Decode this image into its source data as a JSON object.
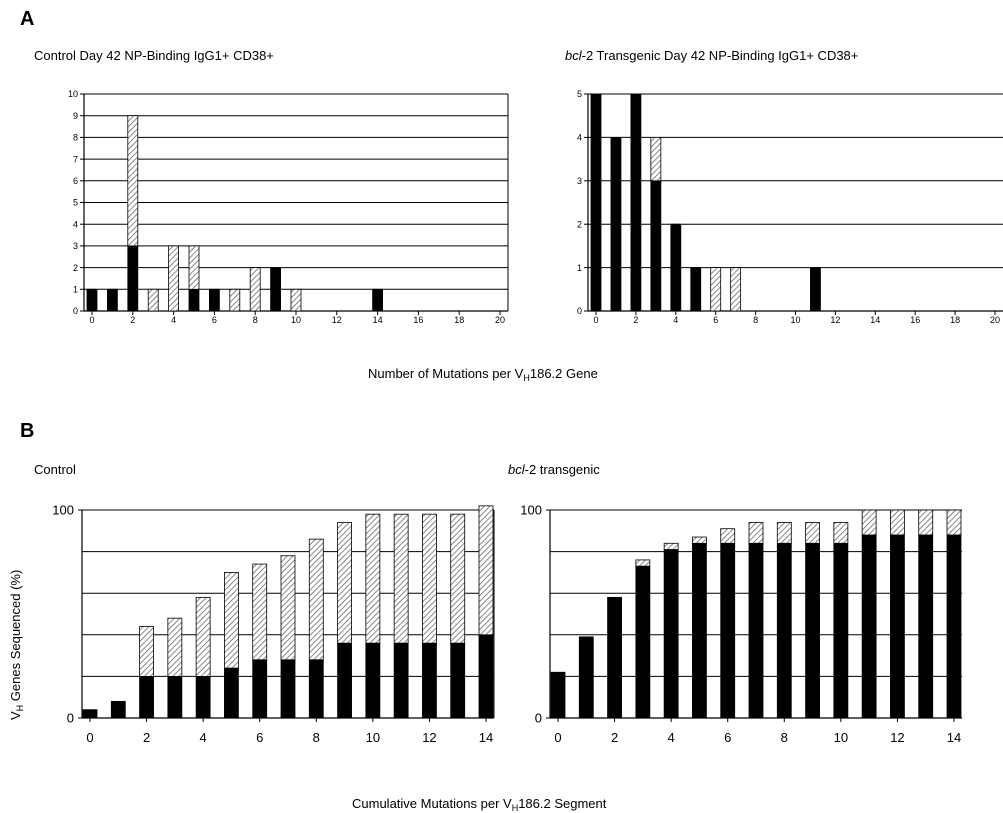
{
  "panel_labels": {
    "a": "A",
    "b": "B"
  },
  "titles": {
    "a_left": "Control Day 42 NP-Binding IgG1+ CD38+",
    "a_right_italic": "bcl",
    "a_right_rest": "-2 Transgenic Day 42 NP-Binding IgG1+ CD38+",
    "b_left": "Control",
    "b_right_italic": "bcl",
    "b_right_rest": "-2 transgenic"
  },
  "captions": {
    "a_x_pre": "Number of Mutations per V",
    "a_x_sub": "H",
    "a_x_post": "186.2 Gene",
    "b_x_pre": "Cumulative Mutations per V",
    "b_x_sub": "H",
    "b_x_post": "186.2 Segment",
    "b_y_pre": "V",
    "b_y_sub": "H",
    "b_y_post": " Genes Sequenced (%)"
  },
  "colors": {
    "solid": "#000000",
    "hatch": "#888888",
    "grid": "#000000"
  },
  "chart_data": [
    {
      "type": "bar",
      "panel": "A-left",
      "title": "Control Day 42 NP-Binding IgG1+ CD38+",
      "xlabel": "Number of Mutations per VH186.2 Gene",
      "x": [
        0,
        1,
        2,
        3,
        4,
        5,
        6,
        7,
        8,
        9,
        10,
        14
      ],
      "series": [
        {
          "values": [
            1,
            1,
            3,
            0,
            0,
            1,
            1,
            0,
            0,
            2,
            0,
            1
          ]
        },
        {
          "values": [
            0,
            0,
            6,
            1,
            3,
            2,
            0,
            1,
            2,
            0,
            1,
            0
          ]
        }
      ],
      "xlim": [
        0,
        20
      ],
      "ylim": [
        0,
        10
      ],
      "xticks": [
        0,
        2,
        4,
        6,
        8,
        10,
        12,
        14,
        16,
        18,
        20
      ],
      "yticks": [
        0,
        1,
        2,
        3,
        4,
        5,
        6,
        7,
        8,
        9,
        10
      ],
      "stacked": true,
      "grid": true
    },
    {
      "type": "bar",
      "panel": "A-right",
      "title": "bcl-2 Transgenic Day 42 NP-Binding IgG1+ CD38+",
      "xlabel": "Number of Mutations per VH186.2 Gene",
      "x": [
        0,
        1,
        2,
        3,
        4,
        5,
        6,
        7,
        11
      ],
      "series": [
        {
          "values": [
            5,
            4,
            5,
            3,
            2,
            1,
            0,
            0,
            1
          ]
        },
        {
          "values": [
            0,
            0,
            0,
            1,
            0,
            0,
            1,
            1,
            0
          ]
        }
      ],
      "xlim": [
        0,
        20
      ],
      "ylim": [
        0,
        5
      ],
      "xticks": [
        0,
        2,
        4,
        6,
        8,
        10,
        12,
        14,
        16,
        18,
        20
      ],
      "yticks": [
        0,
        1,
        2,
        3,
        4,
        5
      ],
      "stacked": true,
      "grid": true
    },
    {
      "type": "bar",
      "panel": "B-left",
      "title": "Control",
      "xlabel": "Cumulative Mutations per VH186.2 Segment",
      "ylabel": "VH Genes Sequenced (%)",
      "x": [
        0,
        1,
        2,
        3,
        4,
        5,
        6,
        7,
        8,
        9,
        10,
        11,
        12,
        13,
        14
      ],
      "series": [
        {
          "values": [
            4,
            8,
            20,
            20,
            20,
            24,
            28,
            28,
            28,
            36,
            36,
            36,
            36,
            36,
            40
          ]
        },
        {
          "values": [
            0,
            0,
            24,
            28,
            38,
            46,
            46,
            50,
            58,
            58,
            62,
            62,
            62,
            62,
            62
          ]
        }
      ],
      "xlim": [
        0,
        14
      ],
      "ylim": [
        0,
        100
      ],
      "xticks": [
        0,
        2,
        4,
        6,
        8,
        10,
        12,
        14
      ],
      "yticks": [
        0,
        100
      ],
      "stacked": true,
      "grid": true
    },
    {
      "type": "bar",
      "panel": "B-right",
      "title": "bcl-2 transgenic",
      "xlabel": "Cumulative Mutations per VH186.2 Segment",
      "ylabel": "VH Genes Sequenced (%)",
      "x": [
        0,
        1,
        2,
        3,
        4,
        5,
        6,
        7,
        8,
        9,
        10,
        11,
        12,
        13,
        14
      ],
      "series": [
        {
          "values": [
            22,
            39,
            58,
            73,
            81,
            84,
            84,
            84,
            84,
            84,
            84,
            88,
            88,
            88,
            88
          ]
        },
        {
          "values": [
            0,
            0,
            0,
            3,
            3,
            3,
            7,
            10,
            10,
            10,
            10,
            12,
            12,
            12,
            12
          ]
        }
      ],
      "xlim": [
        0,
        14
      ],
      "ylim": [
        0,
        100
      ],
      "xticks": [
        0,
        2,
        4,
        6,
        8,
        10,
        12,
        14
      ],
      "yticks": [
        0,
        100
      ],
      "stacked": true,
      "grid": true
    }
  ]
}
